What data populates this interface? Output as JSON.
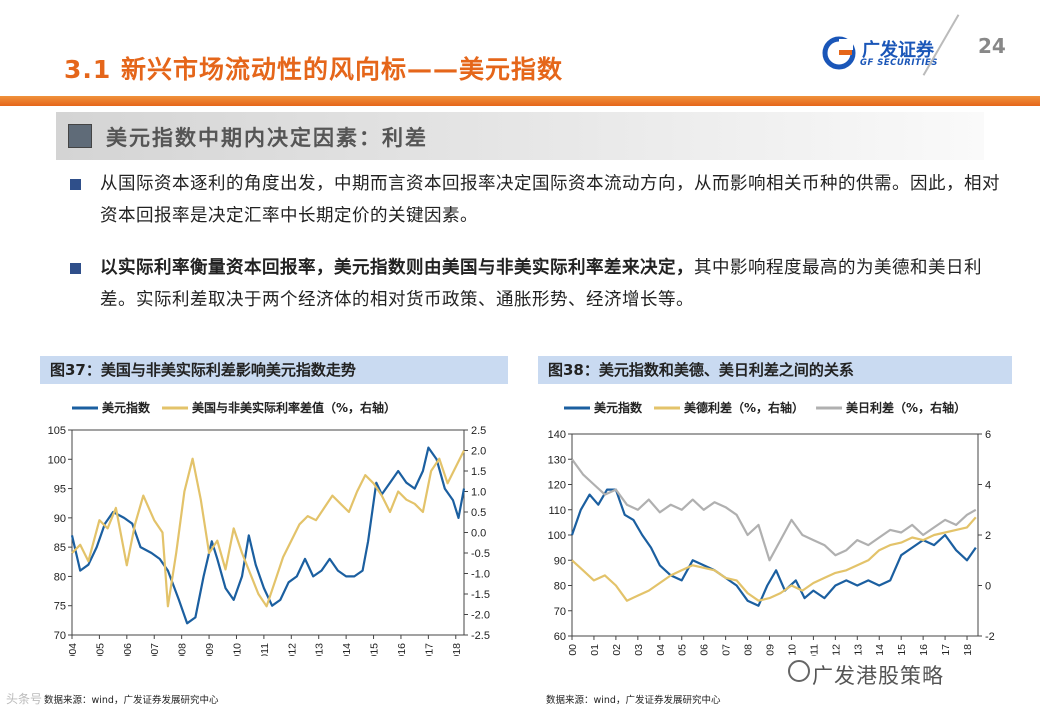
{
  "header": {
    "title": "3.1 新兴市场流动性的风向标——美元指数",
    "logo_cn": "广发证券",
    "logo_en": "GF SECURITIES",
    "page_number": "24"
  },
  "colors": {
    "accent": "#e5661a",
    "navy": "#1b5fa0",
    "gold": "#e3c36a",
    "gray": "#b0b0b0",
    "bullet": "#2f4f8a",
    "panel_head": "#c9daf1"
  },
  "section": {
    "heading": "美元指数中期内决定因素：利差"
  },
  "bullets": [
    {
      "text": "从国际资本逐利的角度出发，中期而言资本回报率决定国际资本流动方向，从而影响相关币种的供需。因此，相对资本回报率是决定汇率中长期定价的关键因素。"
    },
    {
      "bold": "以实际利率衡量资本回报率，美元指数则由美国与非美实际利率差来决定，",
      "text": "其中影响程度最高的为美德和美日利差。实际利差取决于两个经济体的相对货币政策、通胀形势、经济增长等。"
    }
  ],
  "chart_data": [
    {
      "id": "fig37",
      "type": "line",
      "title": "图37：美国与非美实际利差影响美元指数走势",
      "source": "数据来源：wind，广发证券发展研究中心",
      "x_ticks": [
        "2004",
        "2005",
        "2006",
        "2007",
        "2008",
        "2009",
        "2010",
        "2011",
        "2012",
        "2013",
        "2014",
        "2015",
        "2016",
        "2017",
        "2018"
      ],
      "xlim": [
        2004.0,
        2018.3
      ],
      "y_left": {
        "ticks": [
          "105",
          "100",
          "95",
          "90",
          "85",
          "80",
          "75",
          "70"
        ],
        "lim": [
          70,
          105
        ]
      },
      "y_right": {
        "ticks": [
          "2.5",
          "2.0",
          "1.5",
          "1.0",
          "0.5",
          "0.0",
          "-0.5",
          "-1.0",
          "-1.5",
          "-2.0",
          "-2.5"
        ],
        "lim": [
          -2.5,
          2.5
        ]
      },
      "series": [
        {
          "name": "美元指数",
          "axis": "left",
          "color": "#1b5fa0",
          "x": [
            2004.0,
            2004.3,
            2004.6,
            2004.9,
            2005.2,
            2005.5,
            2005.9,
            2006.2,
            2006.5,
            2006.9,
            2007.2,
            2007.5,
            2007.9,
            2008.2,
            2008.5,
            2008.8,
            2009.1,
            2009.3,
            2009.6,
            2009.9,
            2010.2,
            2010.45,
            2010.7,
            2011.0,
            2011.3,
            2011.6,
            2011.9,
            2012.2,
            2012.5,
            2012.8,
            2013.1,
            2013.4,
            2013.7,
            2014.0,
            2014.3,
            2014.6,
            2014.8,
            2015.1,
            2015.3,
            2015.6,
            2015.9,
            2016.2,
            2016.5,
            2016.8,
            2017.0,
            2017.3,
            2017.6,
            2017.9,
            2018.1,
            2018.3
          ],
          "y": [
            87,
            81,
            82,
            85,
            89,
            91,
            90,
            89,
            85,
            84,
            83,
            81,
            76,
            72,
            73,
            80,
            86,
            83,
            78,
            76,
            80,
            87,
            82,
            78,
            75,
            76,
            79,
            80,
            83,
            80,
            81,
            83,
            81,
            80,
            80,
            81,
            86,
            96,
            94,
            96,
            98,
            96,
            95,
            98,
            102,
            100,
            95,
            93,
            90,
            95
          ]
        },
        {
          "name": "美国与非美实际利率差值（%，右轴）",
          "axis": "right",
          "color": "#e3c36a",
          "x": [
            2004.0,
            2004.3,
            2004.6,
            2005.0,
            2005.3,
            2005.6,
            2006.0,
            2006.3,
            2006.6,
            2007.0,
            2007.3,
            2007.5,
            2007.8,
            2008.1,
            2008.4,
            2008.7,
            2009.0,
            2009.3,
            2009.6,
            2009.9,
            2010.2,
            2010.5,
            2010.8,
            2011.1,
            2011.4,
            2011.7,
            2012.0,
            2012.3,
            2012.6,
            2012.9,
            2013.2,
            2013.5,
            2013.8,
            2014.1,
            2014.4,
            2014.7,
            2015.0,
            2015.3,
            2015.6,
            2015.9,
            2016.2,
            2016.5,
            2016.8,
            2017.1,
            2017.4,
            2017.7,
            2018.0,
            2018.3
          ],
          "y": [
            -0.5,
            -0.3,
            -0.7,
            0.3,
            0.1,
            0.6,
            -0.8,
            0.2,
            0.9,
            0.3,
            0.0,
            -1.8,
            -0.5,
            1.0,
            1.8,
            0.8,
            -0.5,
            -0.2,
            -0.9,
            0.1,
            -0.5,
            -1.0,
            -1.5,
            -1.8,
            -1.2,
            -0.6,
            -0.2,
            0.2,
            0.4,
            0.3,
            0.6,
            0.9,
            0.7,
            0.5,
            1.0,
            1.4,
            1.2,
            0.9,
            0.5,
            1.0,
            0.8,
            0.7,
            0.5,
            1.5,
            1.8,
            1.2,
            1.6,
            2.0
          ]
        }
      ]
    },
    {
      "id": "fig38",
      "type": "line",
      "title": "图38：美元指数和美德、美日利差之间的关系",
      "source": "数据来源：wind，广发证券发展研究中心",
      "x_ticks": [
        "2000",
        "2001",
        "2002",
        "2003",
        "2004",
        "2005",
        "2006",
        "2007",
        "2008",
        "2009",
        "2010",
        "2011",
        "2012",
        "2013",
        "2014",
        "2015",
        "2016",
        "2017",
        "2018"
      ],
      "xlim": [
        2000.0,
        2018.5
      ],
      "y_left": {
        "ticks": [
          "140",
          "130",
          "120",
          "110",
          "100",
          "90",
          "80",
          "70",
          "60"
        ],
        "lim": [
          60,
          140
        ]
      },
      "y_right": {
        "ticks": [
          "6",
          "4",
          "2",
          "0",
          "-2"
        ],
        "lim": [
          -2,
          6
        ]
      },
      "series": [
        {
          "name": "美元指数",
          "axis": "left",
          "color": "#1b5fa0",
          "x": [
            2000.0,
            2000.4,
            2000.8,
            2001.2,
            2001.6,
            2002.0,
            2002.4,
            2002.8,
            2003.2,
            2003.6,
            2004.0,
            2004.5,
            2005.0,
            2005.5,
            2006.0,
            2006.5,
            2007.0,
            2007.5,
            2008.0,
            2008.5,
            2008.9,
            2009.3,
            2009.7,
            2010.2,
            2010.6,
            2011.0,
            2011.5,
            2012.0,
            2012.5,
            2013.0,
            2013.5,
            2014.0,
            2014.5,
            2015.0,
            2015.5,
            2016.0,
            2016.5,
            2017.0,
            2017.5,
            2018.0,
            2018.4
          ],
          "y": [
            100,
            110,
            116,
            112,
            118,
            118,
            108,
            106,
            100,
            95,
            88,
            84,
            82,
            90,
            88,
            86,
            83,
            80,
            74,
            72,
            80,
            86,
            78,
            82,
            75,
            78,
            75,
            80,
            82,
            80,
            82,
            80,
            82,
            92,
            95,
            98,
            96,
            100,
            94,
            90,
            95
          ]
        },
        {
          "name": "美德利差（%，右轴）",
          "axis": "right",
          "color": "#e3c36a",
          "x": [
            2000.0,
            2000.5,
            2001.0,
            2001.5,
            2002.0,
            2002.5,
            2003.0,
            2003.5,
            2004.0,
            2004.5,
            2005.0,
            2005.5,
            2006.0,
            2006.5,
            2007.0,
            2007.5,
            2008.0,
            2008.5,
            2009.0,
            2009.5,
            2010.0,
            2010.5,
            2011.0,
            2011.5,
            2012.0,
            2012.5,
            2013.0,
            2013.5,
            2014.0,
            2014.5,
            2015.0,
            2015.5,
            2016.0,
            2016.5,
            2017.0,
            2017.5,
            2018.0,
            2018.4
          ],
          "y": [
            1.0,
            0.6,
            0.2,
            0.4,
            0.0,
            -0.6,
            -0.4,
            -0.2,
            0.1,
            0.4,
            0.6,
            0.8,
            0.7,
            0.6,
            0.3,
            0.2,
            -0.3,
            -0.6,
            -0.5,
            -0.3,
            0.0,
            -0.2,
            0.1,
            0.3,
            0.5,
            0.6,
            0.8,
            1.0,
            1.4,
            1.6,
            1.7,
            1.9,
            1.8,
            2.0,
            2.1,
            2.2,
            2.3,
            2.7
          ]
        },
        {
          "name": "美日利差（%，右轴）",
          "axis": "right",
          "color": "#b0b0b0",
          "x": [
            2000.0,
            2000.5,
            2001.0,
            2001.5,
            2002.0,
            2002.5,
            2003.0,
            2003.5,
            2004.0,
            2004.5,
            2005.0,
            2005.5,
            2006.0,
            2006.5,
            2007.0,
            2007.5,
            2008.0,
            2008.5,
            2009.0,
            2009.5,
            2010.0,
            2010.5,
            2011.0,
            2011.5,
            2012.0,
            2012.5,
            2013.0,
            2013.5,
            2014.0,
            2014.5,
            2015.0,
            2015.5,
            2016.0,
            2016.5,
            2017.0,
            2017.5,
            2018.0,
            2018.4
          ],
          "y": [
            5.0,
            4.4,
            4.0,
            3.6,
            3.8,
            3.2,
            3.0,
            3.4,
            2.9,
            3.2,
            3.0,
            3.4,
            3.0,
            3.3,
            3.1,
            2.8,
            2.0,
            2.4,
            1.0,
            1.8,
            2.6,
            2.0,
            1.8,
            1.6,
            1.2,
            1.4,
            1.8,
            1.6,
            1.9,
            2.2,
            2.1,
            2.4,
            2.0,
            2.3,
            2.6,
            2.4,
            2.8,
            3.0
          ]
        }
      ]
    }
  ],
  "watermark": "广发港股策略",
  "corner_mark": "头条号"
}
